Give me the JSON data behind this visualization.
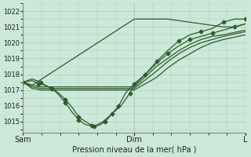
{
  "background_color": "#cce8d8",
  "plot_bg_color": "#cce8d8",
  "grid_color": "#aacfbe",
  "line_color": "#2d5c2d",
  "marker_color": "#2d5c2d",
  "xlabel": "Pression niveau de la mer( hPa )",
  "ylim": [
    1014.3,
    1022.5
  ],
  "yticks": [
    1015,
    1016,
    1017,
    1018,
    1019,
    1020,
    1021,
    1022
  ],
  "xtick_labels": [
    "Sam",
    "Dim",
    "L"
  ],
  "xtick_positions": [
    0,
    0.5,
    1.0
  ],
  "series": [
    {
      "x": [
        0.0,
        0.04,
        0.08,
        0.1,
        0.13,
        0.16,
        0.19,
        0.22,
        0.25,
        0.28,
        0.31,
        0.34,
        0.37,
        0.4,
        0.43,
        0.46,
        0.5,
        0.55,
        0.6,
        0.65,
        0.7,
        0.75,
        0.8,
        0.85,
        0.9,
        0.95,
        1.0
      ],
      "y": [
        1017.5,
        1017.7,
        1017.5,
        1017.3,
        1017.1,
        1016.8,
        1016.4,
        1015.9,
        1015.3,
        1015.0,
        1014.75,
        1014.75,
        1015.0,
        1015.5,
        1016.0,
        1016.8,
        1017.4,
        1018.0,
        1018.8,
        1019.5,
        1020.1,
        1020.5,
        1020.7,
        1020.9,
        1021.3,
        1021.5,
        1021.5
      ],
      "marker": true
    },
    {
      "x": [
        0.0,
        0.04,
        0.07,
        0.1,
        0.13,
        0.16,
        0.19,
        0.22,
        0.25,
        0.28,
        0.32,
        0.36,
        0.4,
        0.44,
        0.48,
        0.5,
        0.55,
        0.6,
        0.65,
        0.7,
        0.75,
        0.8,
        0.85,
        0.9,
        0.95,
        1.0
      ],
      "y": [
        1017.5,
        1017.6,
        1017.4,
        1017.3,
        1017.1,
        1016.7,
        1016.2,
        1015.6,
        1015.1,
        1014.8,
        1014.7,
        1015.0,
        1015.5,
        1016.0,
        1016.8,
        1017.3,
        1018.0,
        1018.7,
        1019.3,
        1019.8,
        1020.2,
        1020.4,
        1020.6,
        1020.8,
        1021.0,
        1021.2
      ],
      "marker": true
    },
    {
      "x": [
        0.0,
        0.04,
        0.08,
        0.5,
        0.6,
        0.7,
        0.75,
        0.8,
        0.85,
        0.9,
        0.95,
        1.0
      ],
      "y": [
        1017.5,
        1017.3,
        1017.2,
        1017.2,
        1018.5,
        1019.5,
        1019.9,
        1020.2,
        1020.4,
        1020.5,
        1020.65,
        1020.8
      ],
      "marker": false
    },
    {
      "x": [
        0.0,
        0.04,
        0.08,
        0.5,
        0.6,
        0.65,
        0.7,
        0.75,
        0.8,
        0.85,
        0.9,
        0.95,
        1.0
      ],
      "y": [
        1017.5,
        1017.2,
        1017.1,
        1017.1,
        1018.2,
        1018.8,
        1019.3,
        1019.7,
        1020.0,
        1020.2,
        1020.4,
        1020.55,
        1020.7
      ],
      "marker": false
    },
    {
      "x": [
        0.0,
        0.04,
        0.08,
        0.5,
        0.6,
        0.65,
        0.7,
        0.75,
        0.8,
        0.85,
        0.9,
        0.95,
        1.0
      ],
      "y": [
        1017.5,
        1017.1,
        1017.0,
        1017.0,
        1017.8,
        1018.4,
        1018.9,
        1019.3,
        1019.7,
        1020.0,
        1020.2,
        1020.35,
        1020.5
      ],
      "marker": false
    },
    {
      "x": [
        0.0,
        0.04,
        0.5,
        0.6,
        0.65,
        0.7,
        0.75,
        0.8,
        0.85,
        0.9,
        0.95,
        1.0
      ],
      "y": [
        1017.5,
        1017.3,
        1021.5,
        1021.5,
        1021.5,
        1021.4,
        1021.3,
        1021.2,
        1021.1,
        1021.0,
        1021.0,
        1021.2
      ],
      "marker": false
    }
  ]
}
